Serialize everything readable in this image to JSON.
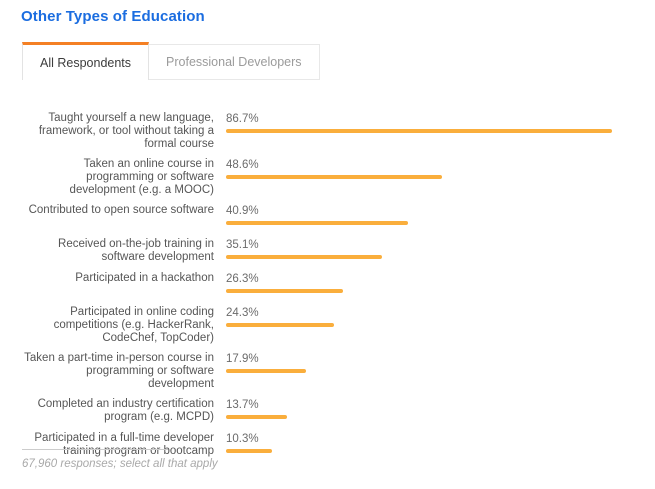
{
  "header": {
    "title": "Other Types of Education"
  },
  "tabs": [
    {
      "label": "All Respondents",
      "active": true
    },
    {
      "label": "Professional Developers",
      "active": false
    }
  ],
  "chart_data": {
    "type": "bar",
    "orientation": "horizontal",
    "title": "Other Types of Education",
    "categories": [
      "Taught yourself a new language, framework, or tool without taking a formal course",
      "Taken an online course in programming or software development (e.g. a MOOC)",
      "Contributed to open source software",
      "Received on-the-job training in software development",
      "Participated in a hackathon",
      "Participated in online coding competitions (e.g. HackerRank, CodeChef, TopCoder)",
      "Taken a part-time in-person course in programming or software development",
      "Completed an industry certification program (e.g. MCPD)",
      "Participated in a full-time developer training program or bootcamp"
    ],
    "values": [
      86.7,
      48.6,
      40.9,
      35.1,
      26.3,
      24.3,
      17.9,
      13.7,
      10.3
    ],
    "value_labels": [
      "86.7%",
      "48.6%",
      "40.9%",
      "35.1%",
      "26.3%",
      "24.3%",
      "17.9%",
      "13.7%",
      "10.3%"
    ],
    "unit": "%",
    "xlim": [
      0,
      100
    ],
    "grid": false,
    "legend": false,
    "bar_color": "#faae3c"
  },
  "footer": {
    "note": "67,960 responses; select all that apply"
  },
  "colors": {
    "title_blue": "#1b6de0",
    "tab_accent_orange": "#f48024",
    "bar_orange": "#faae3c",
    "label_gray": "#565656",
    "value_gray": "#6b6b6b",
    "footnote_gray": "#a9a9a9"
  }
}
